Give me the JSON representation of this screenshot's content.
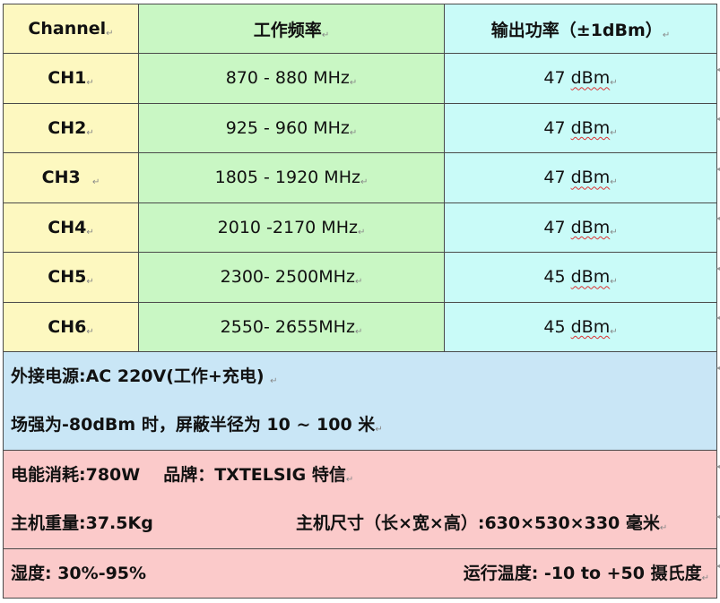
{
  "table": {
    "headers": [
      "Channel",
      "工作频率",
      "输出功率（±1dBm）"
    ],
    "rows": [
      {
        "channel": "CH1",
        "freq": "870 - 880 MHz",
        "power_value": "47",
        "power_unit": "dBm"
      },
      {
        "channel": "CH2",
        "freq": "925 - 960 MHz",
        "power_value": "47",
        "power_unit": "dBm"
      },
      {
        "channel": "CH3",
        "freq": "1805 - 1920 MHz",
        "power_value": "47",
        "power_unit": "dBm"
      },
      {
        "channel": "CH4",
        "freq": "2010 -2170 MHz",
        "power_value": "47",
        "power_unit": "dBm"
      },
      {
        "channel": "CH5",
        "freq": "2300- 2500MHz",
        "power_value": "45",
        "power_unit": "dBm"
      },
      {
        "channel": "CH6",
        "freq": "2550- 2655MHz",
        "power_value": "45",
        "power_unit": "dBm"
      }
    ]
  },
  "specs": {
    "power_supply": "外接电源:AC 220V(工作+充电)",
    "shield_radius": "场强为-80dBm 时，屏蔽半径为 10 ~ 100 米",
    "consumption": "电能消耗:780W",
    "brand": "品牌：TXTELSIG  特信",
    "weight": "主机重量:37.5Kg",
    "dimensions": "主机尺寸（长×宽×高）:630×530×330  毫米",
    "humidity": "湿度: 30%-95%",
    "operating_temp": "运行温度: -10 to +50 摄氏度"
  },
  "paragraph_mark": "↵"
}
